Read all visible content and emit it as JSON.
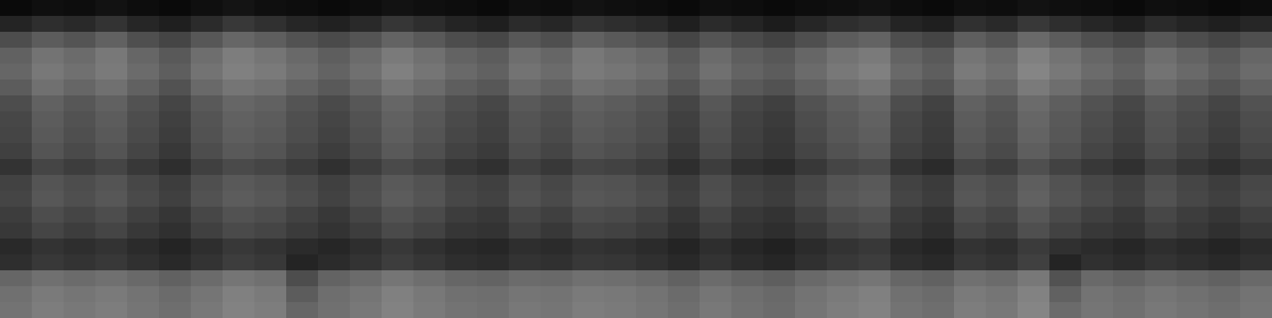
{
  "chart_data": {
    "type": "heatmap",
    "tick_labels": false,
    "zlim": [
      0,
      100
    ],
    "cells": [
      [
        4,
        6,
        5,
        7,
        5,
        4,
        6,
        8,
        6,
        5,
        4,
        5,
        7,
        6,
        5,
        4,
        6,
        5,
        7,
        6,
        5,
        4,
        6,
        5,
        4,
        5,
        6,
        7,
        5,
        4,
        6,
        5,
        7,
        6,
        5,
        4,
        6,
        5,
        4,
        5
      ],
      [
        14,
        18,
        16,
        20,
        15,
        12,
        17,
        22,
        19,
        15,
        13,
        16,
        21,
        18,
        14,
        12,
        17,
        15,
        20,
        18,
        16,
        12,
        17,
        14,
        11,
        15,
        18,
        20,
        14,
        12,
        19,
        16,
        22,
        18,
        15,
        12,
        17,
        14,
        12,
        15
      ],
      [
        30,
        36,
        33,
        38,
        31,
        27,
        34,
        40,
        37,
        32,
        29,
        33,
        39,
        35,
        30,
        28,
        34,
        31,
        38,
        35,
        32,
        27,
        33,
        29,
        26,
        31,
        36,
        39,
        30,
        27,
        37,
        33,
        41,
        36,
        31,
        28,
        34,
        30,
        27,
        31
      ],
      [
        38,
        45,
        42,
        47,
        40,
        35,
        43,
        49,
        46,
        41,
        37,
        42,
        48,
        44,
        39,
        36,
        43,
        40,
        47,
        44,
        41,
        35,
        42,
        37,
        34,
        40,
        45,
        48,
        39,
        35,
        46,
        42,
        50,
        45,
        40,
        36,
        43,
        39,
        35,
        40
      ],
      [
        40,
        47,
        44,
        48,
        42,
        37,
        45,
        50,
        48,
        43,
        39,
        44,
        50,
        46,
        41,
        38,
        45,
        42,
        48,
        46,
        43,
        37,
        44,
        39,
        36,
        42,
        47,
        50,
        41,
        37,
        48,
        44,
        52,
        47,
        42,
        38,
        45,
        41,
        37,
        42
      ],
      [
        36,
        44,
        40,
        44,
        38,
        32,
        41,
        46,
        44,
        39,
        35,
        40,
        46,
        42,
        37,
        34,
        41,
        38,
        44,
        42,
        39,
        33,
        40,
        35,
        32,
        38,
        43,
        46,
        37,
        33,
        44,
        40,
        48,
        43,
        38,
        34,
        41,
        37,
        33,
        38
      ],
      [
        30,
        38,
        34,
        38,
        32,
        27,
        35,
        40,
        38,
        33,
        29,
        34,
        40,
        36,
        31,
        28,
        35,
        32,
        38,
        36,
        33,
        27,
        34,
        28,
        25,
        32,
        37,
        40,
        30,
        26,
        38,
        34,
        42,
        37,
        32,
        28,
        35,
        31,
        27,
        32
      ],
      [
        28,
        36,
        32,
        36,
        30,
        25,
        33,
        38,
        36,
        31,
        27,
        32,
        38,
        34,
        29,
        26,
        33,
        30,
        36,
        34,
        31,
        25,
        32,
        26,
        23,
        30,
        35,
        38,
        28,
        24,
        36,
        32,
        40,
        35,
        30,
        26,
        33,
        29,
        25,
        30
      ],
      [
        27,
        35,
        31,
        35,
        29,
        24,
        32,
        37,
        35,
        30,
        26,
        31,
        37,
        33,
        28,
        25,
        32,
        29,
        35,
        33,
        30,
        24,
        31,
        25,
        22,
        29,
        34,
        37,
        27,
        23,
        35,
        31,
        39,
        34,
        29,
        25,
        32,
        28,
        24,
        29
      ],
      [
        25,
        33,
        29,
        33,
        27,
        22,
        30,
        35,
        33,
        28,
        24,
        29,
        35,
        31,
        26,
        23,
        30,
        27,
        33,
        31,
        28,
        22,
        29,
        24,
        21,
        27,
        32,
        35,
        25,
        22,
        33,
        29,
        37,
        32,
        27,
        23,
        30,
        26,
        22,
        27
      ],
      [
        20,
        27,
        24,
        27,
        22,
        18,
        25,
        29,
        27,
        23,
        19,
        24,
        29,
        26,
        21,
        19,
        25,
        22,
        27,
        26,
        23,
        18,
        24,
        19,
        17,
        22,
        27,
        29,
        20,
        17,
        27,
        24,
        31,
        26,
        22,
        19,
        25,
        21,
        18,
        22
      ],
      [
        26,
        33,
        30,
        33,
        28,
        24,
        31,
        35,
        33,
        29,
        25,
        30,
        35,
        32,
        27,
        25,
        31,
        28,
        33,
        32,
        29,
        24,
        30,
        25,
        23,
        28,
        33,
        35,
        26,
        23,
        33,
        30,
        37,
        32,
        28,
        25,
        31,
        27,
        24,
        28
      ],
      [
        27,
        34,
        31,
        34,
        29,
        25,
        32,
        36,
        34,
        30,
        26,
        31,
        36,
        33,
        28,
        26,
        32,
        29,
        34,
        33,
        30,
        25,
        31,
        26,
        24,
        29,
        34,
        36,
        27,
        24,
        34,
        31,
        38,
        33,
        29,
        26,
        32,
        28,
        25,
        29
      ],
      [
        24,
        30,
        27,
        30,
        25,
        21,
        28,
        32,
        30,
        26,
        22,
        27,
        32,
        29,
        24,
        22,
        28,
        25,
        30,
        29,
        26,
        21,
        27,
        22,
        20,
        25,
        30,
        32,
        23,
        20,
        30,
        27,
        34,
        29,
        25,
        22,
        28,
        24,
        21,
        25
      ],
      [
        22,
        27,
        24,
        27,
        22,
        19,
        25,
        29,
        27,
        23,
        20,
        24,
        29,
        26,
        21,
        20,
        25,
        22,
        27,
        26,
        23,
        19,
        24,
        20,
        18,
        22,
        27,
        29,
        21,
        18,
        27,
        24,
        31,
        26,
        22,
        20,
        25,
        22,
        19,
        22
      ],
      [
        16,
        20,
        18,
        20,
        17,
        14,
        18,
        22,
        20,
        17,
        15,
        18,
        22,
        19,
        16,
        15,
        18,
        17,
        20,
        19,
        17,
        14,
        18,
        15,
        13,
        17,
        20,
        22,
        16,
        14,
        20,
        18,
        23,
        19,
        17,
        15,
        18,
        16,
        14,
        17
      ],
      [
        18,
        22,
        20,
        22,
        19,
        16,
        20,
        24,
        22,
        14,
        17,
        20,
        24,
        21,
        18,
        17,
        20,
        19,
        22,
        21,
        19,
        16,
        20,
        17,
        15,
        19,
        22,
        24,
        18,
        16,
        22,
        20,
        25,
        14,
        19,
        17,
        20,
        18,
        16,
        19
      ],
      [
        40,
        44,
        42,
        44,
        41,
        38,
        42,
        46,
        44,
        30,
        39,
        42,
        46,
        43,
        40,
        39,
        42,
        41,
        44,
        43,
        41,
        38,
        42,
        39,
        37,
        41,
        44,
        46,
        40,
        38,
        44,
        42,
        47,
        32,
        41,
        39,
        42,
        40,
        38,
        41
      ],
      [
        44,
        48,
        46,
        48,
        45,
        42,
        46,
        50,
        48,
        36,
        43,
        46,
        50,
        47,
        44,
        43,
        46,
        45,
        48,
        47,
        45,
        42,
        46,
        43,
        41,
        45,
        48,
        50,
        44,
        42,
        48,
        46,
        51,
        38,
        45,
        43,
        46,
        44,
        42,
        45
      ],
      [
        45,
        49,
        47,
        49,
        46,
        43,
        47,
        51,
        49,
        40,
        44,
        47,
        51,
        48,
        45,
        44,
        47,
        46,
        49,
        48,
        46,
        43,
        47,
        44,
        42,
        46,
        49,
        51,
        45,
        43,
        49,
        47,
        52,
        42,
        46,
        44,
        47,
        45,
        43,
        46
      ]
    ]
  }
}
